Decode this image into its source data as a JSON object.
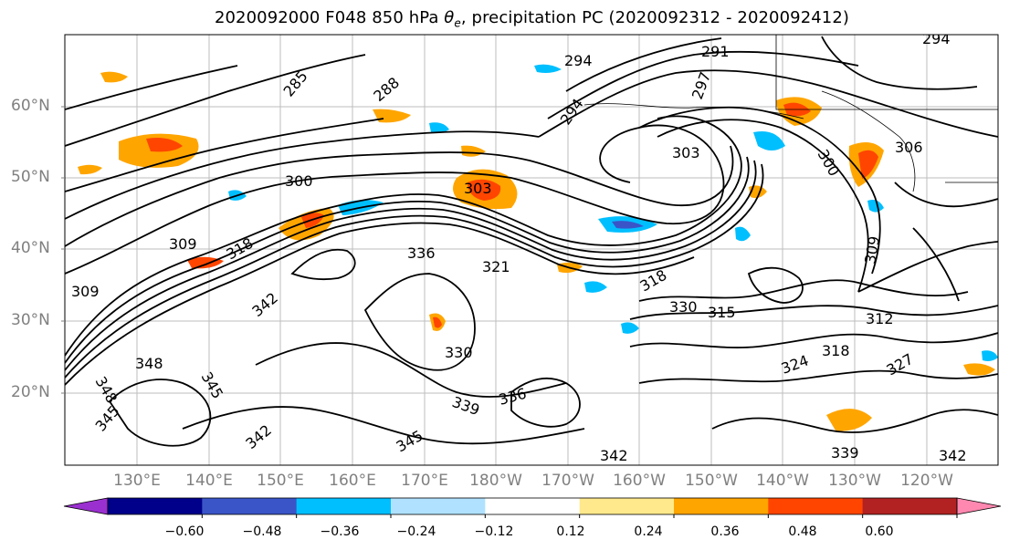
{
  "title": "2020092000 F048 850 hPa θe, precipitation PC (2020092312 - 2020092412)",
  "map": {
    "lat_labels": [
      "60°N",
      "50°N",
      "40°N",
      "30°N",
      "20°N"
    ],
    "lon_labels": [
      "130°E",
      "140°E",
      "150°E",
      "160°E",
      "170°E",
      "180°W",
      "170°W",
      "160°W",
      "150°W",
      "140°W",
      "130°W",
      "120°W"
    ],
    "contour_labels": [
      "285",
      "288",
      "291",
      "294",
      "294",
      "294",
      "297",
      "300",
      "300",
      "303",
      "303",
      "306",
      "309",
      "309",
      "309",
      "312",
      "315",
      "318",
      "318",
      "318",
      "321",
      "324",
      "327",
      "330",
      "330",
      "336",
      "336",
      "339",
      "339",
      "342",
      "342",
      "342",
      "342",
      "345",
      "345",
      "345",
      "348",
      "348"
    ],
    "land_color": "#ffffff",
    "grid": true
  },
  "colorbar": {
    "colors": [
      "#9b30d0",
      "#00008b",
      "#3a55c8",
      "#00bfff",
      "#b0e2ff",
      "#ffffff",
      "#ffe98c",
      "#ffa500",
      "#ff4500",
      "#b22222",
      "#ff88b0"
    ],
    "ticks": [
      "−0.60",
      "−0.48",
      "−0.36",
      "−0.24",
      "−0.12",
      "0.12",
      "0.24",
      "0.36",
      "0.48",
      "0.60"
    ]
  }
}
